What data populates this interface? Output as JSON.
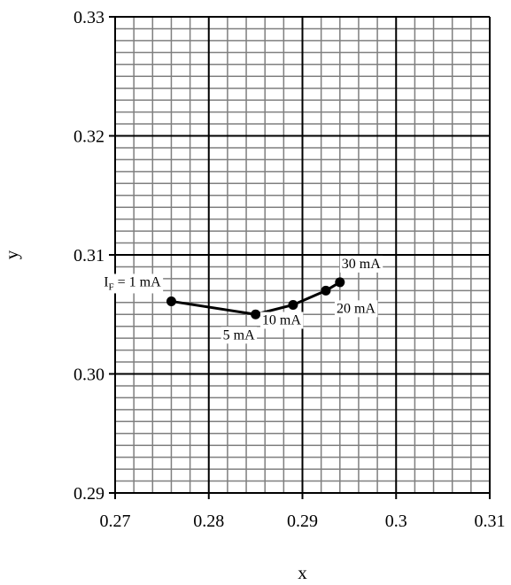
{
  "chart_data": {
    "type": "line",
    "xlabel": "x",
    "ylabel": "y",
    "xlim": [
      0.27,
      0.31
    ],
    "ylim": [
      0.29,
      0.33
    ],
    "x_ticks": [
      "0.27",
      "0.28",
      "0.29",
      "0.3",
      "0.31"
    ],
    "y_ticks": [
      "0.29",
      "0.30",
      "0.31",
      "0.32",
      "0.33"
    ],
    "grid": true,
    "series": [
      {
        "points": [
          {
            "x": 0.276,
            "y": 0.3061,
            "label": "= 1 mA",
            "label_prefix": "I",
            "label_sub": "F"
          },
          {
            "x": 0.285,
            "y": 0.305,
            "label": "5 mA"
          },
          {
            "x": 0.289,
            "y": 0.3058,
            "label": "10 mA"
          },
          {
            "x": 0.2925,
            "y": 0.307,
            "label": "20 mA"
          },
          {
            "x": 0.294,
            "y": 0.3077,
            "label": "30 mA"
          }
        ]
      }
    ]
  }
}
